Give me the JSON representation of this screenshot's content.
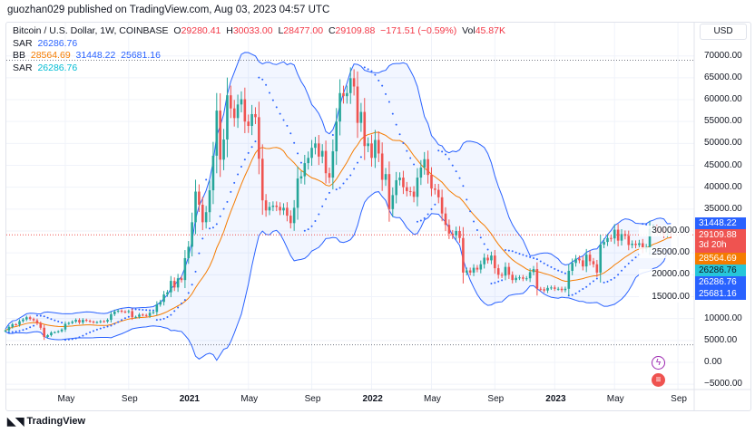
{
  "header": {
    "published": "guozhan029 published on TradingView.com, Aug 03, 2023 04:57 UTC"
  },
  "legend": {
    "symbol": "Bitcoin / U.S. Dollar, 1W, COINBASE",
    "o_label": "O",
    "o": "29280.41",
    "h_label": "H",
    "h": "30033.00",
    "l_label": "L",
    "l": "28477.00",
    "c_label": "C",
    "c": "29109.88",
    "change": "−171.51 (−0.59%)",
    "vol_label": "Vol",
    "vol": "45.87K",
    "sar1_label": "SAR",
    "sar1": "26286.76",
    "bb_label": "BB",
    "bb_mid": "28564.69",
    "bb_up": "31448.22",
    "bb_low": "25681.16",
    "sar2_label": "SAR",
    "sar2": "26286.76"
  },
  "currency": "USD",
  "badges": {
    "bb_up": "31448.22",
    "price": "29109.88",
    "countdown": "3d 20h",
    "bb_mid": "28564.69",
    "sar_a": "26286.76",
    "sar_b": "26286.76",
    "bb_low": "25681.16"
  },
  "colors": {
    "up": "#26a69a",
    "down": "#ef5350",
    "bb_band": "#2962ff",
    "bb_mid": "#f57c00",
    "sar": "#2962ff"
  },
  "logo": "TradingView",
  "chart_data": {
    "type": "candlestick",
    "title": "Bitcoin / U.S. Dollar, 1W, COINBASE",
    "ylabel": "USD",
    "ylim": [
      -7000,
      74000
    ],
    "y_ticks": [
      "70000.00",
      "65000.00",
      "60000.00",
      "55000.00",
      "50000.00",
      "45000.00",
      "40000.00",
      "35000.00",
      "30000.00",
      "25000.00",
      "20000.00",
      "15000.00",
      "10000.00",
      "5000.00",
      "0.00",
      "−5000.00"
    ],
    "y_tick_values": [
      70000,
      65000,
      60000,
      55000,
      50000,
      45000,
      40000,
      35000,
      30000,
      25000,
      20000,
      15000,
      10000,
      5000,
      0,
      -5000
    ],
    "x_ticks": [
      {
        "label": "May",
        "week": 17
      },
      {
        "label": "Sep",
        "week": 35
      },
      {
        "label": "2021",
        "week": 52
      },
      {
        "label": "May",
        "week": 69
      },
      {
        "label": "Sep",
        "week": 87
      },
      {
        "label": "2022",
        "week": 104
      },
      {
        "label": "May",
        "week": 121
      },
      {
        "label": "Sep",
        "week": 139
      },
      {
        "label": "2023",
        "week": 156
      },
      {
        "label": "May",
        "week": 173
      },
      {
        "label": "Sep",
        "week": 191
      }
    ],
    "interval": "1W",
    "start": "2020-01",
    "indicators": [
      "Bollinger Bands (20, 2)",
      "Parabolic SAR"
    ],
    "price_lines": [
      69000,
      4000
    ],
    "closes": [
      7300,
      8100,
      8700,
      8600,
      9400,
      9800,
      10300,
      9900,
      9600,
      8900,
      7900,
      5800,
      6200,
      6800,
      6900,
      7100,
      7500,
      8800,
      9000,
      9300,
      9700,
      9100,
      9700,
      9500,
      9300,
      9100,
      9200,
      9400,
      9300,
      9700,
      11000,
      11600,
      11800,
      11600,
      11500,
      11700,
      10300,
      10400,
      10900,
      10800,
      10600,
      11300,
      11500,
      13200,
      13800,
      15500,
      16000,
      18600,
      17100,
      19200,
      18800,
      23800,
      26400,
      32000,
      39000,
      36000,
      32000,
      34300,
      39300,
      47200,
      57500,
      46300,
      50900,
      61000,
      58000,
      55800,
      58900,
      60100,
      55000,
      54000,
      56700,
      56000,
      46500,
      37000,
      34700,
      35500,
      35800,
      35500,
      34700,
      35300,
      33500,
      31800,
      35300,
      42000,
      42500,
      45500,
      46700,
      49000,
      50000,
      47000,
      48300,
      43200,
      42200,
      48200,
      55000,
      61500,
      60800,
      61500,
      64900,
      63000,
      54700,
      57200,
      49400,
      50000,
      46700,
      50800,
      47700,
      41700,
      43000,
      35000,
      38200,
      41600,
      42200,
      40000,
      39100,
      39000,
      37800,
      42200,
      44500,
      46400,
      42800,
      39700,
      39400,
      37700,
      34000,
      31400,
      29400,
      29000,
      30000,
      28400,
      20500,
      21000,
      20500,
      21600,
      21200,
      22400,
      23900,
      23300,
      24400,
      21500,
      20000,
      19800,
      21800,
      20000,
      18800,
      19300,
      19400,
      19100,
      19200,
      20600,
      21300,
      16800,
      16700,
      16400,
      17000,
      17100,
      16800,
      16800,
      16500,
      16800,
      20900,
      22700,
      23700,
      23300,
      21900,
      24600,
      23100,
      22400,
      20500,
      26900,
      27500,
      28400,
      28300,
      30300,
      27800,
      29300,
      28900,
      26800,
      27100,
      26800,
      27200,
      25900,
      26300,
      30500,
      30600,
      30300,
      30100,
      29300,
      29300,
      29110
    ]
  }
}
